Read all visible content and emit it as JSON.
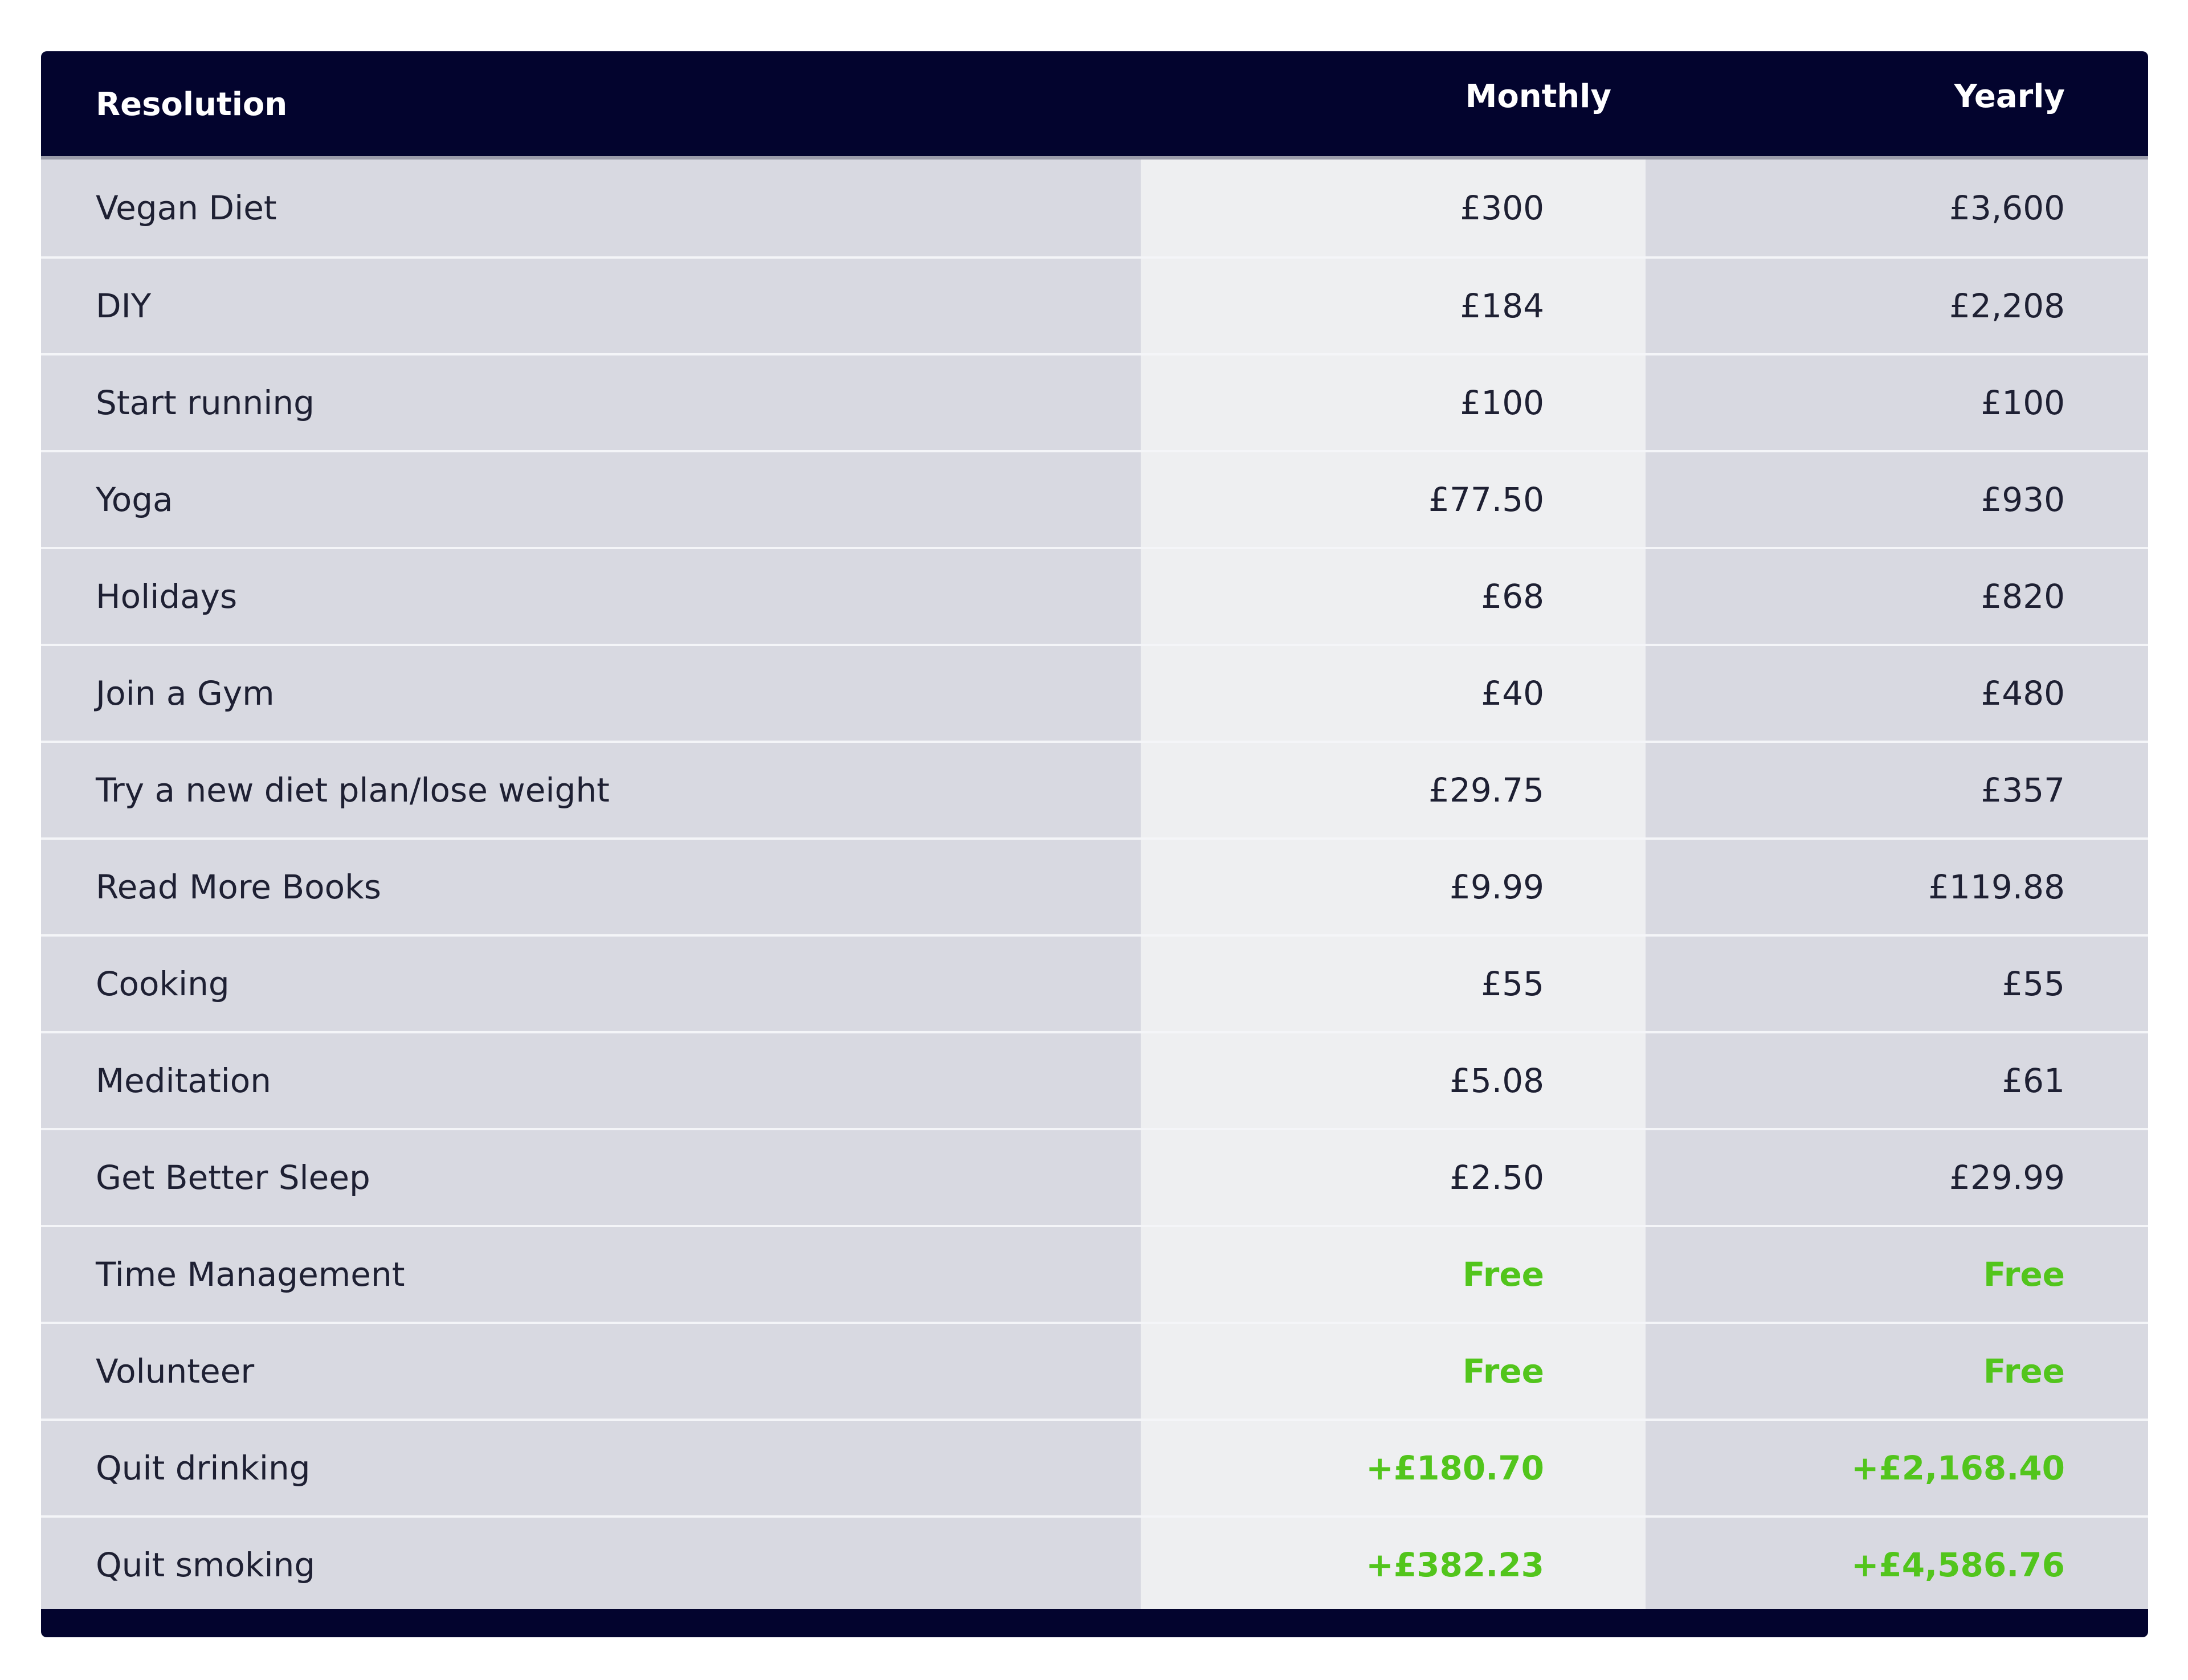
{
  "table": {
    "headers": {
      "resolution": "Resolution",
      "monthly": "Monthly",
      "yearly": "Yearly"
    },
    "accent_color": "#03042e",
    "highlight_color": "#52c51c",
    "rows": [
      {
        "resolution": "Vegan Diet",
        "monthly": "£300",
        "yearly": "£3,600",
        "highlight": false
      },
      {
        "resolution": "DIY",
        "monthly": "£184",
        "yearly": "£2,208",
        "highlight": false
      },
      {
        "resolution": "Start running",
        "monthly": "£100",
        "yearly": "£100",
        "highlight": false
      },
      {
        "resolution": "Yoga",
        "monthly": "£77.50",
        "yearly": "£930",
        "highlight": false
      },
      {
        "resolution": "Holidays",
        "monthly": "£68",
        "yearly": "£820",
        "highlight": false
      },
      {
        "resolution": "Join a Gym",
        "monthly": "£40",
        "yearly": "£480",
        "highlight": false
      },
      {
        "resolution": "Try a new diet plan/lose weight",
        "monthly": "£29.75",
        "yearly": "£357",
        "highlight": false
      },
      {
        "resolution": "Read More Books",
        "monthly": "£9.99",
        "yearly": "£119.88",
        "highlight": false
      },
      {
        "resolution": "Cooking",
        "monthly": "£55",
        "yearly": "£55",
        "highlight": false
      },
      {
        "resolution": "Meditation",
        "monthly": "£5.08",
        "yearly": "£61",
        "highlight": false
      },
      {
        "resolution": "Get Better Sleep",
        "monthly": "£2.50",
        "yearly": "£29.99",
        "highlight": false
      },
      {
        "resolution": "Time Management",
        "monthly": "Free",
        "yearly": "Free",
        "highlight": true
      },
      {
        "resolution": "Volunteer",
        "monthly": "Free",
        "yearly": "Free",
        "highlight": true
      },
      {
        "resolution": "Quit drinking",
        "monthly": "+£180.70",
        "yearly": "+£2,168.40",
        "highlight": true
      },
      {
        "resolution": "Quit smoking",
        "monthly": "+£382.23",
        "yearly": "+£4,586.76",
        "highlight": true
      }
    ]
  }
}
